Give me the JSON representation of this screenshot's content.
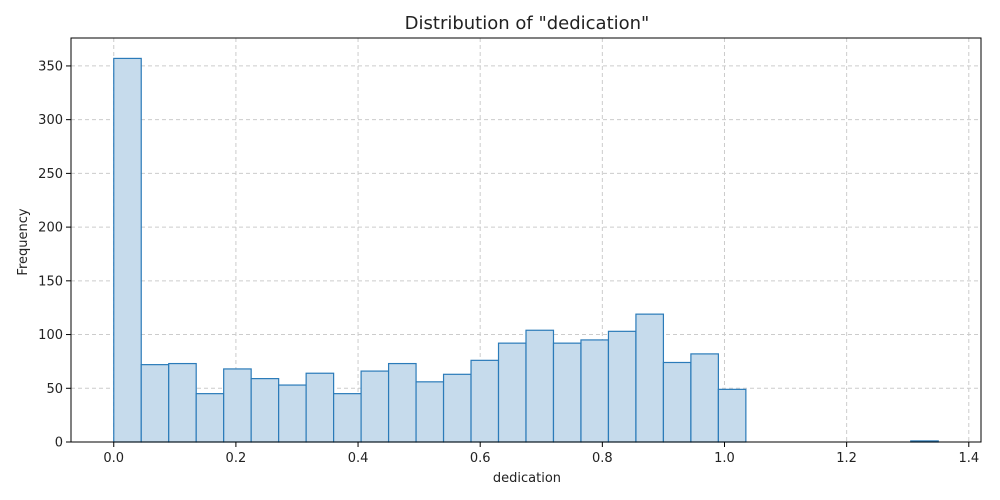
{
  "chart_data": {
    "type": "bar",
    "title": "Distribution of \"dedication\"",
    "xlabel": "dedication",
    "ylabel": "Frequency",
    "xlim": [
      -0.07,
      1.42
    ],
    "ylim": [
      0,
      376
    ],
    "xticks": [
      0.0,
      0.2,
      0.4,
      0.6,
      0.8,
      1.0,
      1.2,
      1.4
    ],
    "xtick_labels": [
      "0.0",
      "0.2",
      "0.4",
      "0.6",
      "0.8",
      "1.0",
      "1.2",
      "1.4"
    ],
    "yticks": [
      0,
      50,
      100,
      150,
      200,
      250,
      300,
      350
    ],
    "ytick_labels": [
      "0",
      "50",
      "100",
      "150",
      "200",
      "250",
      "300",
      "350"
    ],
    "grid": true,
    "bins": [
      {
        "x0": 0.0,
        "x1": 0.045,
        "count": 357
      },
      {
        "x0": 0.045,
        "x1": 0.09,
        "count": 72
      },
      {
        "x0": 0.09,
        "x1": 0.135,
        "count": 73
      },
      {
        "x0": 0.135,
        "x1": 0.18,
        "count": 45
      },
      {
        "x0": 0.18,
        "x1": 0.225,
        "count": 68
      },
      {
        "x0": 0.225,
        "x1": 0.27,
        "count": 59
      },
      {
        "x0": 0.27,
        "x1": 0.315,
        "count": 53
      },
      {
        "x0": 0.315,
        "x1": 0.36,
        "count": 64
      },
      {
        "x0": 0.36,
        "x1": 0.405,
        "count": 45
      },
      {
        "x0": 0.405,
        "x1": 0.45,
        "count": 66
      },
      {
        "x0": 0.45,
        "x1": 0.495,
        "count": 73
      },
      {
        "x0": 0.495,
        "x1": 0.54,
        "count": 56
      },
      {
        "x0": 0.54,
        "x1": 0.585,
        "count": 63
      },
      {
        "x0": 0.585,
        "x1": 0.63,
        "count": 76
      },
      {
        "x0": 0.63,
        "x1": 0.675,
        "count": 92
      },
      {
        "x0": 0.675,
        "x1": 0.72,
        "count": 104
      },
      {
        "x0": 0.72,
        "x1": 0.765,
        "count": 92
      },
      {
        "x0": 0.765,
        "x1": 0.81,
        "count": 95
      },
      {
        "x0": 0.81,
        "x1": 0.855,
        "count": 103
      },
      {
        "x0": 0.855,
        "x1": 0.9,
        "count": 119
      },
      {
        "x0": 0.9,
        "x1": 0.945,
        "count": 74
      },
      {
        "x0": 0.945,
        "x1": 0.99,
        "count": 82
      },
      {
        "x0": 0.99,
        "x1": 1.035,
        "count": 49
      },
      {
        "x0": 1.035,
        "x1": 1.08,
        "count": 0
      },
      {
        "x0": 1.08,
        "x1": 1.125,
        "count": 0
      },
      {
        "x0": 1.125,
        "x1": 1.17,
        "count": 0
      },
      {
        "x0": 1.17,
        "x1": 1.215,
        "count": 0
      },
      {
        "x0": 1.215,
        "x1": 1.26,
        "count": 0
      },
      {
        "x0": 1.26,
        "x1": 1.305,
        "count": 0
      },
      {
        "x0": 1.305,
        "x1": 1.35,
        "count": 1
      }
    ],
    "colors": {
      "bar_fill": "#c6dbec",
      "bar_edge": "#2b7bb9",
      "grid": "#cccccc"
    }
  }
}
